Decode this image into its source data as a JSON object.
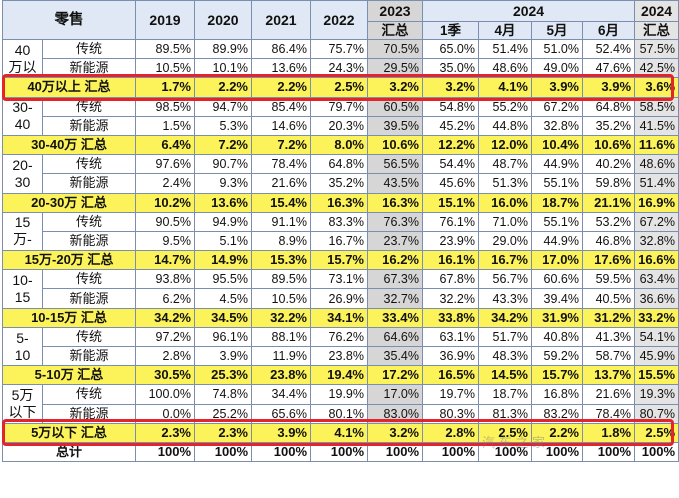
{
  "header": {
    "segment": "零售",
    "year_2019": "2019",
    "year_2020": "2020",
    "year_2021": "2021",
    "year_2022": "2022",
    "year_2023": "2023",
    "sum_2023": "汇总",
    "year_2024": "2024",
    "q1": "1季",
    "apr": "4月",
    "may": "5月",
    "jun": "6月",
    "year_2024b": "2024",
    "sum_2024": "汇总"
  },
  "labels": {
    "traditional": "传统",
    "nev": "新能源"
  },
  "groups": [
    {
      "name": "40\n万以",
      "traditional": [
        "89.5%",
        "89.9%",
        "86.4%",
        "75.7%",
        "70.5%",
        "65.0%",
        "51.4%",
        "51.0%",
        "52.4%",
        "57.5%"
      ],
      "nev": [
        "10.5%",
        "10.1%",
        "13.6%",
        "24.3%",
        "29.5%",
        "35.0%",
        "48.6%",
        "49.0%",
        "47.6%",
        "42.5%"
      ],
      "sum_label": "40万以上 汇总",
      "sum": [
        "1.7%",
        "2.2%",
        "2.2%",
        "2.5%",
        "3.2%",
        "3.2%",
        "4.1%",
        "3.9%",
        "3.9%",
        "3.6%"
      ]
    },
    {
      "name": "30-\n40",
      "traditional": [
        "98.5%",
        "94.7%",
        "85.4%",
        "79.7%",
        "60.5%",
        "54.8%",
        "55.2%",
        "67.2%",
        "64.8%",
        "58.5%"
      ],
      "nev": [
        "1.5%",
        "5.3%",
        "14.6%",
        "20.3%",
        "39.5%",
        "45.2%",
        "44.8%",
        "32.8%",
        "35.2%",
        "41.5%"
      ],
      "sum_label": "30-40万 汇总",
      "sum": [
        "6.4%",
        "7.2%",
        "7.2%",
        "8.0%",
        "10.6%",
        "12.2%",
        "12.0%",
        "10.4%",
        "10.6%",
        "11.6%"
      ]
    },
    {
      "name": "20-\n30",
      "traditional": [
        "97.6%",
        "90.7%",
        "78.4%",
        "64.8%",
        "56.5%",
        "54.4%",
        "48.7%",
        "44.9%",
        "40.2%",
        "48.6%"
      ],
      "nev": [
        "2.4%",
        "9.3%",
        "21.6%",
        "35.2%",
        "43.5%",
        "45.6%",
        "51.3%",
        "55.1%",
        "59.8%",
        "51.4%"
      ],
      "sum_label": "20-30万 汇总",
      "sum": [
        "10.2%",
        "13.6%",
        "15.4%",
        "16.3%",
        "16.3%",
        "15.1%",
        "16.0%",
        "18.7%",
        "21.1%",
        "16.9%"
      ]
    },
    {
      "name": "15\n万-",
      "traditional": [
        "90.5%",
        "94.9%",
        "91.1%",
        "83.3%",
        "76.3%",
        "76.1%",
        "71.0%",
        "55.1%",
        "53.2%",
        "67.2%"
      ],
      "nev": [
        "9.5%",
        "5.1%",
        "8.9%",
        "16.7%",
        "23.7%",
        "23.9%",
        "29.0%",
        "44.9%",
        "46.8%",
        "32.8%"
      ],
      "sum_label": "15万-20万 汇总",
      "sum": [
        "14.7%",
        "14.9%",
        "15.3%",
        "15.7%",
        "16.2%",
        "16.1%",
        "16.7%",
        "17.0%",
        "17.6%",
        "16.6%"
      ]
    },
    {
      "name": "10-\n15",
      "traditional": [
        "93.8%",
        "95.5%",
        "89.5%",
        "73.1%",
        "67.3%",
        "67.8%",
        "56.7%",
        "60.6%",
        "59.5%",
        "63.4%"
      ],
      "nev": [
        "6.2%",
        "4.5%",
        "10.5%",
        "26.9%",
        "32.7%",
        "32.2%",
        "43.3%",
        "39.4%",
        "40.5%",
        "36.6%"
      ],
      "sum_label": "10-15万 汇总",
      "sum": [
        "34.2%",
        "34.5%",
        "32.2%",
        "34.1%",
        "33.4%",
        "33.8%",
        "34.2%",
        "31.9%",
        "31.2%",
        "33.2%"
      ]
    },
    {
      "name": "5-\n10",
      "traditional": [
        "97.2%",
        "96.1%",
        "88.1%",
        "76.2%",
        "64.6%",
        "63.1%",
        "51.7%",
        "40.8%",
        "41.3%",
        "54.1%"
      ],
      "nev": [
        "2.8%",
        "3.9%",
        "11.9%",
        "23.8%",
        "35.4%",
        "36.9%",
        "48.3%",
        "59.2%",
        "58.7%",
        "45.9%"
      ],
      "sum_label": "5-10万 汇总",
      "sum": [
        "30.5%",
        "25.3%",
        "23.8%",
        "19.4%",
        "17.2%",
        "16.5%",
        "14.5%",
        "15.7%",
        "13.7%",
        "15.5%"
      ]
    },
    {
      "name": "5万\n以下",
      "traditional": [
        "100.0%",
        "74.8%",
        "34.4%",
        "19.9%",
        "17.0%",
        "19.7%",
        "18.7%",
        "16.8%",
        "21.6%",
        "19.3%"
      ],
      "nev": [
        "0.0%",
        "25.2%",
        "65.6%",
        "80.1%",
        "83.0%",
        "80.3%",
        "81.3%",
        "83.2%",
        "78.4%",
        "80.7%"
      ],
      "sum_label": "5万以下 汇总",
      "sum": [
        "2.3%",
        "2.3%",
        "3.9%",
        "4.1%",
        "3.2%",
        "2.8%",
        "2.5%",
        "2.2%",
        "1.8%",
        "2.5%"
      ]
    }
  ],
  "total": {
    "label": "总计",
    "values": [
      "100%",
      "100%",
      "100%",
      "100%",
      "100%",
      "100%",
      "100%",
      "100%",
      "100%",
      "100%"
    ]
  },
  "highlight": {
    "color": "#e4232b",
    "rows": [
      "40万以上 汇总",
      "5万以下 汇总"
    ]
  },
  "watermark": "汽 车 之 家"
}
